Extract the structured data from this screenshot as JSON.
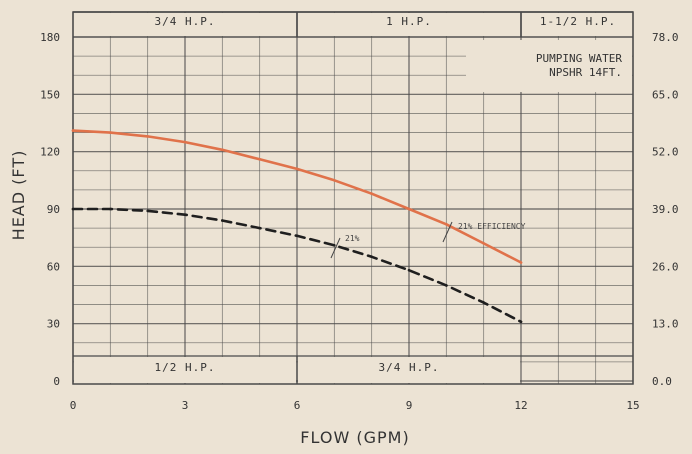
{
  "chart_data": {
    "type": "line",
    "xlabel": "FLOW (GPM)",
    "ylabel": "HEAD (FT)",
    "xlim": [
      0,
      15
    ],
    "ylim": [
      0,
      180
    ],
    "x_ticks": [
      "0",
      "3",
      "6",
      "9",
      "12",
      "15"
    ],
    "y_ticks": [
      "0",
      "30",
      "60",
      "90",
      "120",
      "150",
      "180"
    ],
    "right_ticks": [
      "0.0",
      "13.0",
      "26.0",
      "39.0",
      "52.0",
      "65.0",
      "78.0"
    ],
    "grid": true,
    "colors": {
      "upper": "#e0724a",
      "lower": "#1f1f1f",
      "grid": "#4a4a4a"
    },
    "series": [
      {
        "x": [
          0,
          1,
          2,
          3,
          4,
          5,
          6,
          7,
          8,
          9,
          10,
          11,
          12
        ],
        "y": [
          131,
          130,
          128,
          125,
          121,
          116,
          111,
          105,
          98,
          90,
          82,
          72,
          62
        ]
      },
      {
        "x": [
          0,
          1,
          2,
          3,
          4,
          5,
          6,
          7,
          8,
          9,
          10,
          11,
          12
        ],
        "y": [
          90,
          90,
          89,
          87,
          84,
          80,
          76,
          71,
          65,
          58,
          50,
          41,
          31
        ]
      }
    ],
    "top_bands": [
      {
        "label": "3/4 H.P.",
        "from": 0,
        "to": 6
      },
      {
        "label": "1 H.P.",
        "from": 6,
        "to": 12
      },
      {
        "label": "1-1/2 H.P.",
        "from": 12,
        "to": 15
      }
    ],
    "bottom_bands": [
      {
        "label": "1/2 H.P.",
        "from": 0,
        "to": 6
      },
      {
        "label": "3/4 H.P.",
        "from": 6,
        "to": 12
      }
    ],
    "annotations": {
      "box_line1": "PUMPING WATER",
      "box_line2": "NPSHR 14FT.",
      "efficiency_upper": "21% EFFICIENCY",
      "efficiency_lower": "21%"
    }
  }
}
